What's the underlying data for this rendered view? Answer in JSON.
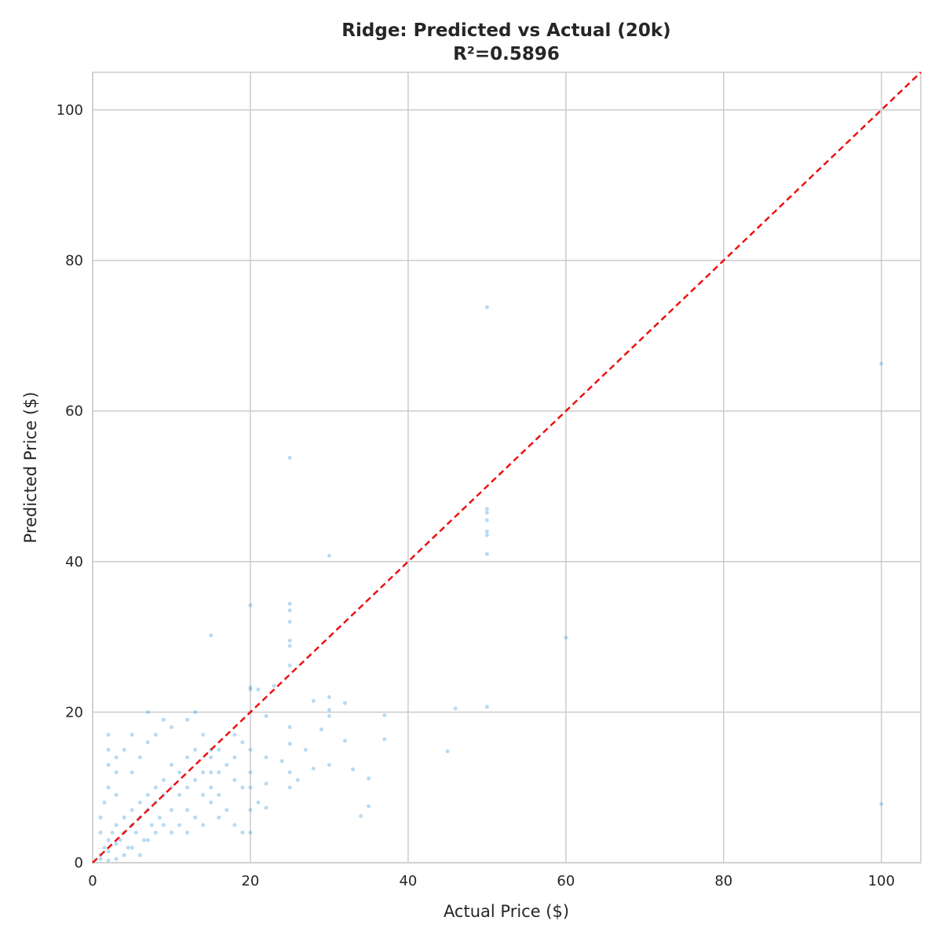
{
  "chart_data": {
    "type": "scatter",
    "title": "Ridge: Predicted vs Actual (20k)",
    "subtitle": "R²=0.5896",
    "x_label": "Actual Price ($)",
    "y_label": "Predicted Price ($)",
    "color": "#3498db",
    "reference_color": "#ee1111",
    "grid": true,
    "xlim": [
      0,
      105
    ],
    "ylim": [
      0,
      105
    ],
    "xticks": [
      0,
      20,
      40,
      60,
      80,
      100
    ],
    "yticks": [
      0,
      20,
      40,
      60,
      80,
      100
    ],
    "x": [
      50,
      100,
      25,
      30,
      50,
      50,
      50,
      50,
      50,
      50,
      60,
      100,
      20,
      15,
      25,
      25,
      25,
      25,
      25,
      25,
      46,
      50,
      45,
      37,
      37,
      35,
      34,
      35,
      33,
      32,
      32,
      30,
      30,
      30,
      30,
      29,
      28,
      28,
      27,
      26,
      25,
      25,
      25,
      25,
      24,
      23,
      22,
      22,
      22,
      22,
      21,
      21,
      20,
      20,
      20,
      20,
      20,
      20,
      20,
      20,
      13,
      18,
      16,
      15,
      15,
      15,
      12,
      10,
      7,
      2,
      1,
      1.5,
      2,
      2,
      2.5,
      3,
      3,
      3.5,
      4,
      4,
      4.5,
      5,
      5,
      5.5,
      6,
      6,
      6.5,
      7,
      7,
      7.5,
      8,
      8,
      8.5,
      9,
      9,
      10,
      10,
      10,
      11,
      11,
      12,
      12,
      12,
      13,
      13,
      14,
      14,
      14,
      15,
      15,
      16,
      16,
      17,
      17,
      18,
      18,
      19,
      19,
      1,
      1,
      1.5,
      2,
      2,
      3,
      3,
      4,
      5,
      5,
      6,
      7,
      8,
      9,
      1,
      2,
      3,
      4,
      5,
      6,
      7,
      8,
      9,
      10,
      11,
      12,
      13,
      14,
      16,
      18,
      19,
      2,
      3
    ],
    "values": [
      73.8,
      66.3,
      53.8,
      40.8,
      47,
      46.5,
      45.5,
      44,
      43.5,
      41,
      29.9,
      7.8,
      34.2,
      30.2,
      34.4,
      33.5,
      32,
      29.5,
      28.8,
      26.2,
      20.5,
      20.7,
      14.8,
      19.6,
      16.4,
      7.5,
      6.2,
      11.2,
      12.4,
      16.2,
      21.2,
      22,
      19.5,
      20.3,
      13,
      17.7,
      21.5,
      12.5,
      15,
      11,
      18,
      12,
      10,
      15.8,
      13.5,
      23.5,
      19.5,
      14,
      10.5,
      7.3,
      23,
      8,
      23.3,
      20,
      15,
      12,
      10,
      7,
      4,
      23,
      20,
      17,
      15,
      15,
      12,
      8,
      19,
      18,
      20,
      17,
      1,
      2,
      3,
      1.5,
      4,
      2.5,
      5,
      3,
      4,
      6,
      2,
      5,
      7,
      4,
      6,
      8,
      3,
      7,
      9,
      5,
      8,
      10,
      6,
      9,
      11,
      10,
      7,
      13,
      9,
      12,
      10,
      14,
      7,
      11,
      15,
      12,
      9,
      17,
      10,
      14,
      12,
      9,
      13,
      7,
      11,
      14,
      10,
      16,
      4,
      6,
      8,
      10,
      13,
      9,
      12,
      15,
      12,
      17,
      14,
      16,
      17,
      19,
      0.5,
      0.3,
      0.5,
      1,
      2,
      1,
      3,
      4,
      5,
      4,
      5,
      4,
      6,
      5,
      6,
      5,
      4,
      15,
      14
    ]
  }
}
